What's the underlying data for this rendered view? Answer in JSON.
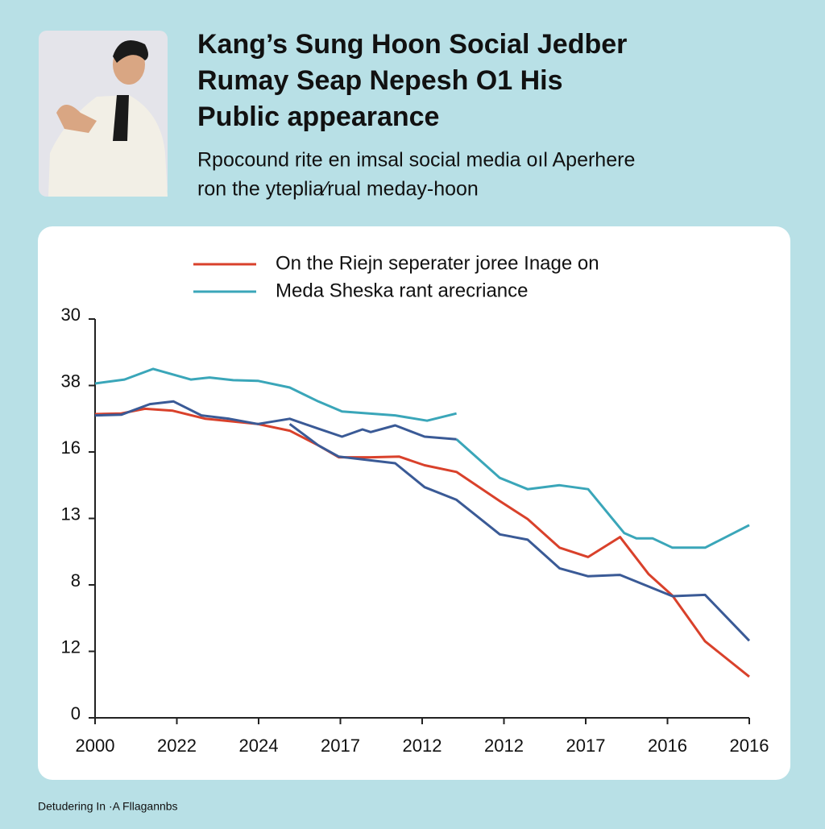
{
  "chart_data": {
    "type": "line",
    "title": [
      "Kang’s Sung Hoon Social Jedber",
      "Rumay Seap Nepesh O1 His",
      "Public appearance"
    ],
    "subtitle": [
      "Rpocound rite en imsal social media oıl Aperhere",
      "ron the yteplia⁄rual meday-hoon"
    ],
    "footer": "Detudering In ·A Fllagannbs",
    "xlim": [
      0,
      8
    ],
    "xticks": [
      {
        "value": 0,
        "label": "2000"
      },
      {
        "value": 1,
        "label": "2022"
      },
      {
        "value": 2,
        "label": "2024"
      },
      {
        "value": 3,
        "label": "2017"
      },
      {
        "value": 4,
        "label": "2012"
      },
      {
        "value": 5,
        "label": "2012"
      },
      {
        "value": 6,
        "label": "2017"
      },
      {
        "value": 7,
        "label": "2016"
      },
      {
        "value": 8,
        "label": "2016"
      }
    ],
    "ylim": [
      0,
      6
    ],
    "yticks": [
      {
        "value": 0,
        "label": "0"
      },
      {
        "value": 1,
        "label": "12"
      },
      {
        "value": 2,
        "label": "8"
      },
      {
        "value": 3,
        "label": "13"
      },
      {
        "value": 4,
        "label": "16"
      },
      {
        "value": 5,
        "label": "38"
      },
      {
        "value": 6,
        "label": "30"
      }
    ],
    "series": [
      {
        "name": "On the Riejn seperater joree Inage on",
        "color": "#d9412b",
        "x": [
          0,
          0.32,
          0.61,
          0.95,
          1.35,
          1.99,
          2.38,
          2.73,
          2.98,
          3.37,
          3.72,
          4.03,
          4.42,
          4.95,
          5.29,
          5.68,
          6.03,
          6.42,
          6.77,
          7.06,
          7.46,
          8
        ],
        "values": [
          4.57,
          4.58,
          4.65,
          4.62,
          4.5,
          4.42,
          4.32,
          4.1,
          3.92,
          3.92,
          3.93,
          3.8,
          3.7,
          3.26,
          2.99,
          2.56,
          2.42,
          2.72,
          2.16,
          1.84,
          1.15,
          0.62
        ]
      },
      {
        "name": "Meda Sheska rant arecriance",
        "color": "#3aa6b9",
        "x": [
          0,
          0.36,
          0.71,
          1.17,
          1.4,
          1.69,
          1.99,
          2.38,
          2.73,
          3.02,
          3.67,
          4.06,
          4.42,
          null,
          4.42,
          4.95,
          5.29,
          5.68,
          6.03,
          6.47,
          6.62,
          6.82,
          7.06,
          7.46,
          8
        ],
        "values": [
          5.03,
          5.09,
          5.25,
          5.09,
          5.12,
          5.08,
          5.07,
          4.97,
          4.76,
          4.61,
          4.55,
          4.47,
          4.58,
          null,
          4.19,
          3.61,
          3.44,
          3.5,
          3.44,
          2.78,
          2.7,
          2.7,
          2.56,
          2.56,
          2.9
        ]
      },
      {
        "color": "#3a5a96",
        "x": [
          0,
          0.32,
          0.67,
          0.96,
          1.3,
          1.64,
          1.99,
          2.38,
          2.73,
          3.02,
          3.27,
          3.37,
          3.67,
          4.03,
          4.42
        ],
        "values": [
          4.55,
          4.56,
          4.72,
          4.76,
          4.55,
          4.5,
          4.42,
          4.5,
          4.35,
          4.23,
          4.34,
          4.3,
          4.4,
          4.23,
          4.19
        ]
      },
      {
        "color": "#3a5a96",
        "x": [
          2.38,
          2.73,
          2.98,
          3.67,
          4.03,
          4.42,
          4.95,
          5.29,
          5.68,
          6.03,
          6.42,
          7.06,
          7.46,
          8
        ],
        "values": [
          4.42,
          4.1,
          3.93,
          3.83,
          3.47,
          3.28,
          2.76,
          2.68,
          2.25,
          2.13,
          2.15,
          1.83,
          1.85,
          1.16
        ]
      }
    ]
  }
}
